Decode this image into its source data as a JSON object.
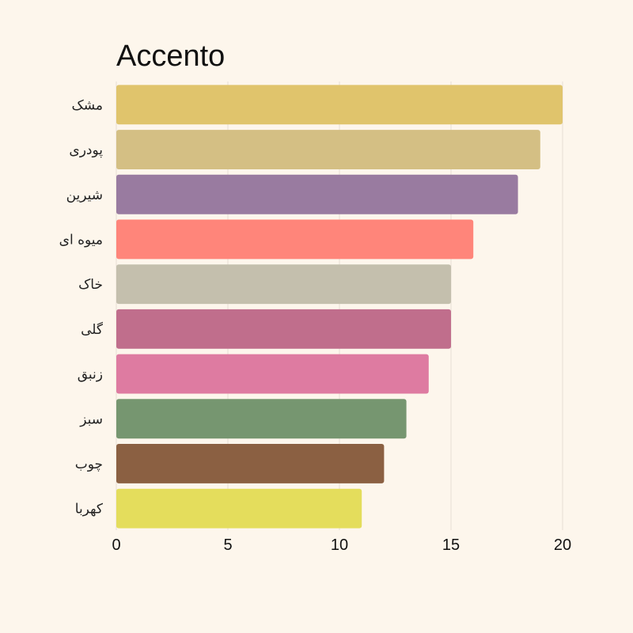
{
  "chart_data": {
    "type": "bar",
    "orientation": "horizontal",
    "title": "Accento",
    "categories": [
      "مشک",
      "پودری",
      "شیرین",
      "میوه ای",
      "خاک",
      "گلی",
      "زنبق",
      "سبز",
      "چوب",
      "کهربا"
    ],
    "values": [
      20,
      19,
      18,
      16,
      15,
      15,
      14,
      13,
      12,
      11
    ],
    "colors": [
      "#e0c46c",
      "#d4bf84",
      "#997ba0",
      "#ff857a",
      "#c4bfad",
      "#c06e8c",
      "#de7ba1",
      "#769670",
      "#8b6042",
      "#e4dd5c"
    ],
    "xlim": [
      0,
      20
    ],
    "xticks": [
      0,
      5,
      10,
      15,
      20
    ],
    "grid": true
  }
}
